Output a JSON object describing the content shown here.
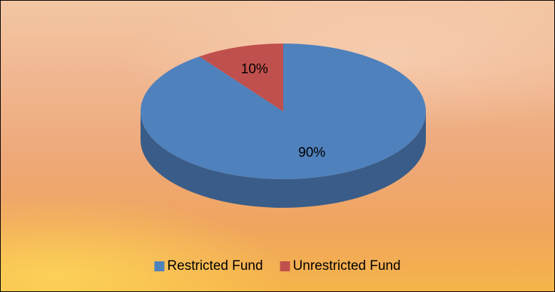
{
  "chart_data": {
    "type": "pie",
    "categories": [
      "Restricted Fund",
      "Unrestricted Fund"
    ],
    "values": [
      90,
      10
    ],
    "value_labels": [
      "90%",
      "10%"
    ],
    "colors": [
      "#4f81bd",
      "#c0504d"
    ],
    "legend": "bottom"
  }
}
